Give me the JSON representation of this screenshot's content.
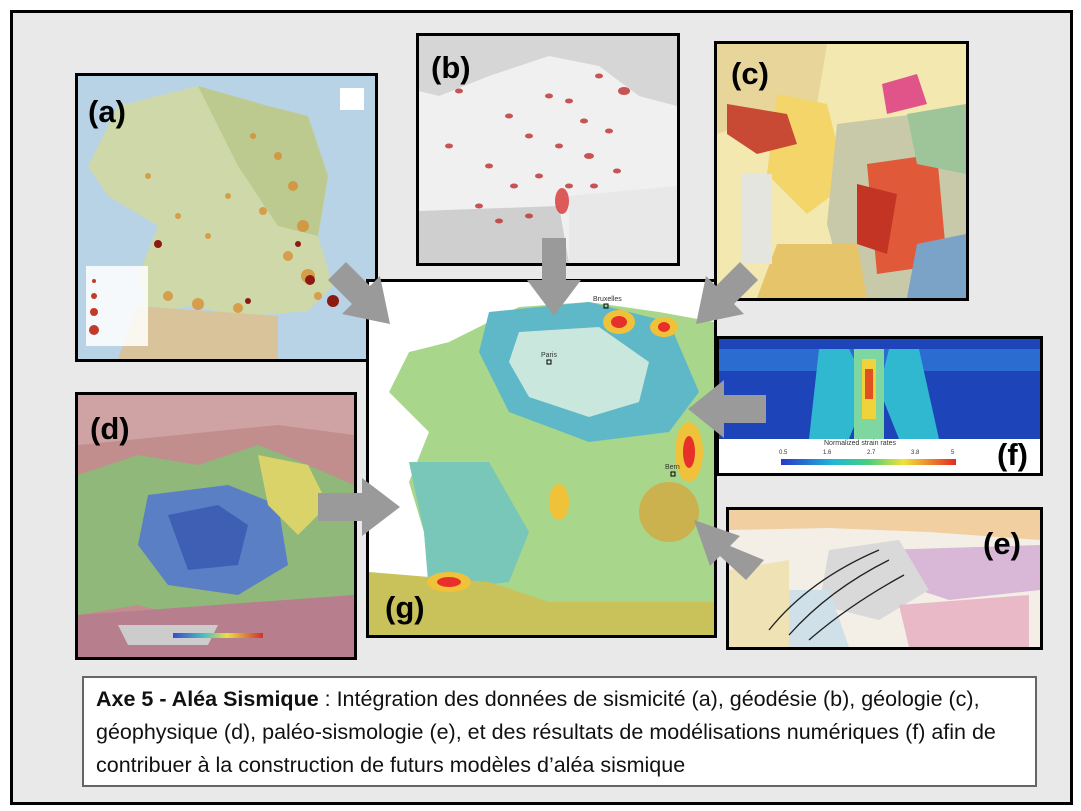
{
  "panels": {
    "a": {
      "label": "(a)"
    },
    "b": {
      "label": "(b)"
    },
    "c": {
      "label": "(c)"
    },
    "d": {
      "label": "(d)"
    },
    "e": {
      "label": "(e)"
    },
    "f": {
      "label": "(f)",
      "colorbar_title": "Normalized strain rates",
      "ticks": [
        "0.5",
        "1.6",
        "2.7",
        "3.8",
        "5"
      ]
    },
    "g": {
      "label": "(g)",
      "cities": [
        "Paris",
        "Bruxelles",
        "Bern"
      ]
    }
  },
  "caption": {
    "title": "Axe 5 - Aléa Sismique",
    "text": " : Intégration des données de sismicité (a), géodésie (b), géologie (c), géophysique (d), paléo-sismologie (e), et des résultats de modélisations numériques (f) afin de contribuer à la construction de futurs modèles d’aléa sismique"
  },
  "colors": {
    "frame_bg": "#e9e9e9",
    "arrow": "#9a9a9a",
    "hazard_low": "#c9e7dc",
    "hazard_mid": "#5fb8c8",
    "hazard_high": "#e8302a"
  }
}
